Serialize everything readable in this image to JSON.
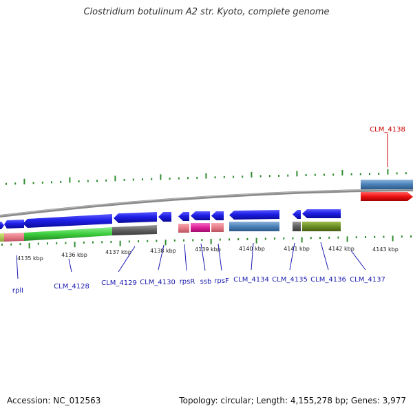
{
  "title": "Clostridium botulinum A2 str. Kyoto, complete genome",
  "footer": {
    "accession": "Accession: NC_012563",
    "summary": "Topology: circular; Length: 4,155,278 bp; Genes: 3,977"
  },
  "colors": {
    "forward_arrow": "#1e1ee6",
    "label_normal": "#1a1ab0",
    "label_highlight": "#cc0000",
    "backbone": "#8a8a8a",
    "tick": "#2e8b2e",
    "steel_blue": "#4a80b8",
    "pink": "#e87c88",
    "magenta": "#e0209a",
    "green": "#3dcc3d",
    "olive": "#6b8e23",
    "gray": "#606060",
    "red": "#ee1111"
  },
  "scale_ticks": [
    {
      "id": "t4135",
      "label": "4135 kbp"
    },
    {
      "id": "t4136",
      "label": "4136 kbp"
    },
    {
      "id": "t4137",
      "label": "4137 kbp"
    },
    {
      "id": "t4138",
      "label": "4138 kbp"
    },
    {
      "id": "t4139",
      "label": "4139 kbp"
    },
    {
      "id": "t4140",
      "label": "4140 kbp"
    },
    {
      "id": "t4141",
      "label": "4141 kbp"
    },
    {
      "id": "t4142",
      "label": "4142 kbp"
    },
    {
      "id": "t4143",
      "label": "4143 kbp"
    }
  ],
  "gene_labels": [
    {
      "id": "rpll",
      "label": "rplI",
      "highlight": false
    },
    {
      "id": "clm4128",
      "label": "CLM_4128",
      "highlight": false
    },
    {
      "id": "clm4129",
      "label": "CLM_4129",
      "highlight": false
    },
    {
      "id": "clm4130",
      "label": "CLM_4130",
      "highlight": false
    },
    {
      "id": "rpsr",
      "label": "rpsR",
      "highlight": false
    },
    {
      "id": "ssb",
      "label": "ssb",
      "highlight": false
    },
    {
      "id": "rpsf",
      "label": "rpsF",
      "highlight": false
    },
    {
      "id": "clm4134",
      "label": "CLM_4134",
      "highlight": false
    },
    {
      "id": "clm4135",
      "label": "CLM_4135",
      "highlight": false
    },
    {
      "id": "clm4136",
      "label": "CLM_4136",
      "highlight": false
    },
    {
      "id": "clm4137",
      "label": "CLM_4137",
      "highlight": false
    },
    {
      "id": "clm4138",
      "label": "CLM_4138",
      "highlight": true
    }
  ]
}
